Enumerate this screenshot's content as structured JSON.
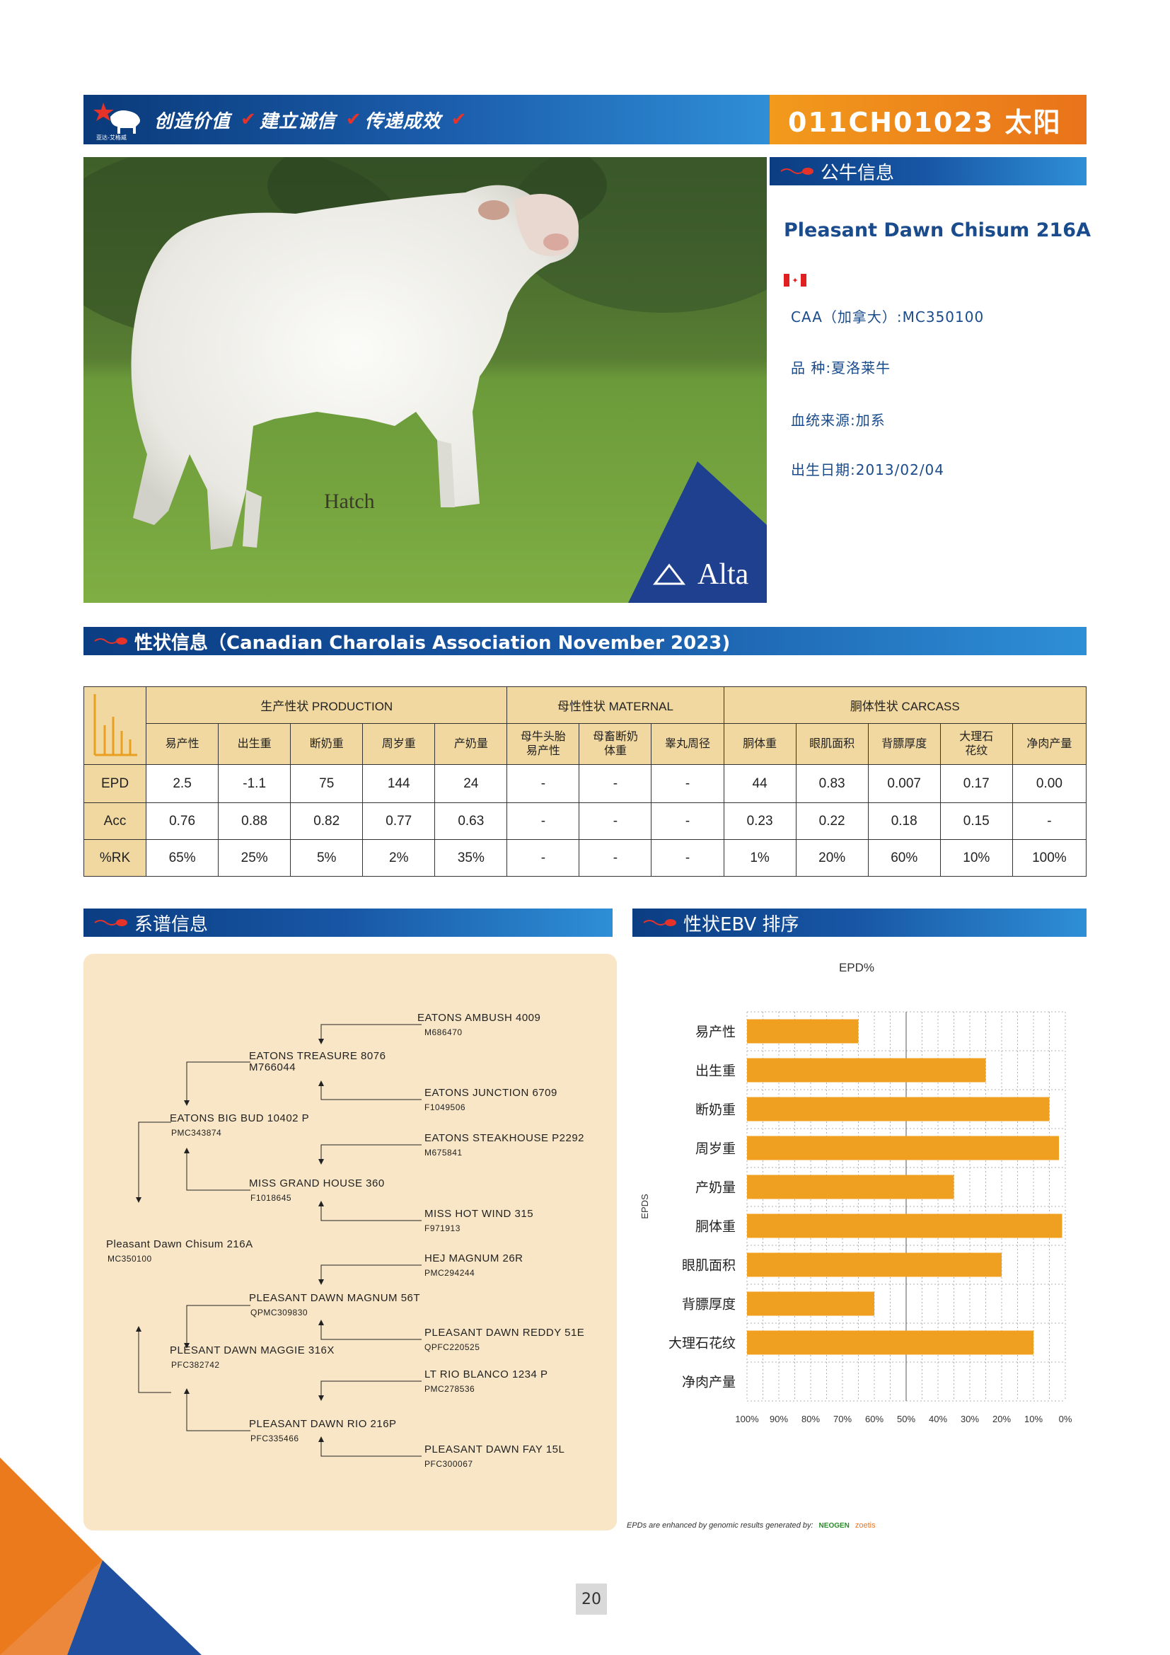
{
  "header": {
    "slogan": [
      "创造价值",
      "建立诚信",
      "传递成效"
    ],
    "logo_text": "亚达-艾格威",
    "bull_code_title": "011CH01023 太阳"
  },
  "photo": {
    "watermark": "Hatch",
    "brand": "Alta"
  },
  "bull_info": {
    "section_title": "公牛信息",
    "name": "Pleasant Dawn Chisum 216A",
    "registration": "CAA（加拿大）:MC350100",
    "breed": "品      种:夏洛莱牛",
    "lineage": "血统来源:加系",
    "birth_date": "出生日期:2013/02/04"
  },
  "traits": {
    "section_title": "性状信息（Canadian Charolais Association November 2023)",
    "groups": [
      {
        "label": "生产性状 PRODUCTION",
        "columns": [
          "易产性",
          "出生重",
          "断奶重",
          "周岁重",
          "产奶量"
        ]
      },
      {
        "label": "母性性状 MATERNAL",
        "columns": [
          "母牛头胎易产性",
          "母畜断奶体重",
          "睾丸周径"
        ]
      },
      {
        "label": "胴体性状 CARCASS",
        "columns": [
          "胴体重",
          "眼肌面积",
          "背膘厚度",
          "大理石花纹",
          "净肉产量"
        ]
      }
    ],
    "rows": [
      {
        "label": "EPD",
        "values": [
          "2.5",
          "-1.1",
          "75",
          "144",
          "24",
          "-",
          "-",
          "-",
          "44",
          "0.83",
          "0.007",
          "0.17",
          "0.00"
        ]
      },
      {
        "label": "Acc",
        "values": [
          "0.76",
          "0.88",
          "0.82",
          "0.77",
          "0.63",
          "-",
          "-",
          "-",
          "0.23",
          "0.22",
          "0.18",
          "0.15",
          "-"
        ]
      },
      {
        "label": "%RK",
        "values": [
          "65%",
          "25%",
          "5%",
          "2%",
          "35%",
          "-",
          "-",
          "-",
          "1%",
          "20%",
          "60%",
          "10%",
          "100%"
        ]
      }
    ]
  },
  "pedigree": {
    "section_title": "系谱信息",
    "subject": {
      "name": "Pleasant Dawn Chisum 216A",
      "reg": "MC350100"
    },
    "sire": {
      "name": "EATONS BIG BUD 10402 P",
      "reg": "PMC343874"
    },
    "dam": {
      "name": "PLESANT DAWN MAGGIE 316X",
      "reg": "PFC382742"
    },
    "sire_sire": {
      "name": "EATONS TREASURE 8076",
      "reg": "M766044"
    },
    "sire_dam": {
      "name": "MISS GRAND HOUSE 360",
      "reg": "F1018645"
    },
    "dam_sire": {
      "name": "PLEASANT DAWN MAGNUM 56T",
      "reg": "QPMC309830"
    },
    "dam_dam": {
      "name": "PLEASANT DAWN RIO 216P",
      "reg": "PFC335466"
    },
    "gg": [
      {
        "name": "EATONS AMBUSH 4009",
        "reg": "M686470"
      },
      {
        "name": "EATONS JUNCTION 6709",
        "reg": "F1049506"
      },
      {
        "name": "EATONS STEAKHOUSE P2292",
        "reg": "M675841"
      },
      {
        "name": "MISS HOT WIND 315",
        "reg": "F971913"
      },
      {
        "name": "HEJ MAGNUM 26R",
        "reg": "PMC294244"
      },
      {
        "name": "PLEASANT DAWN REDDY 51E",
        "reg": "QPFC220525"
      },
      {
        "name": "LT RIO BLANCO 1234 P",
        "reg": "PMC278536"
      },
      {
        "name": "PLEASANT DAWN FAY 15L",
        "reg": "PFC300067"
      }
    ]
  },
  "ebv": {
    "section_title": "性状EBV 排序",
    "footnote": "EPDs are enhanced by genomic results generated by:",
    "footnote_brands": [
      "NEOGEN",
      "zoetis"
    ]
  },
  "chart_data": {
    "type": "bar",
    "title": "EPD%",
    "ylabel": "EPDS",
    "categories": [
      "易产性",
      "出生重",
      "断奶重",
      "周岁重",
      "产奶量",
      "胴体重",
      "眼肌面积",
      "背膘厚度",
      "大理石花纹",
      "净肉产量"
    ],
    "values": [
      65,
      25,
      5,
      2,
      35,
      1,
      20,
      60,
      10,
      100
    ],
    "xlim": [
      100,
      0
    ],
    "x_ticks": [
      "100%",
      "90%",
      "80%",
      "70%",
      "60%",
      "50%",
      "40%",
      "30%",
      "20%",
      "10%",
      "0%"
    ],
    "bar_color": "#f0a020"
  },
  "page": {
    "number": "20"
  },
  "colors": {
    "brand_blue": "#1857a6",
    "brand_orange": "#e9731a",
    "table_header": "#f1d8a0"
  }
}
